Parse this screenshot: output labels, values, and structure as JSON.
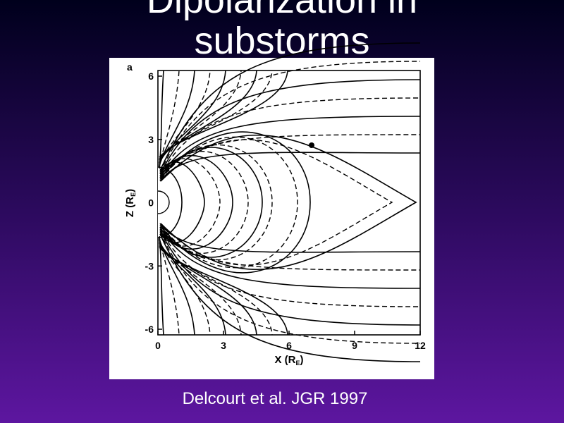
{
  "slide": {
    "title": "Dipolarization in substorms",
    "caption": "Delcourt et al. JGR 1997",
    "figure": {
      "panel": "a",
      "y_label": [
        "Z (R",
        "E",
        ")"
      ],
      "x_label": [
        "X  (R",
        "E",
        ")"
      ],
      "yticks": [
        6,
        3,
        0,
        -3,
        -6
      ],
      "xticks": [
        0,
        3,
        6,
        9,
        12
      ]
    }
  }
}
